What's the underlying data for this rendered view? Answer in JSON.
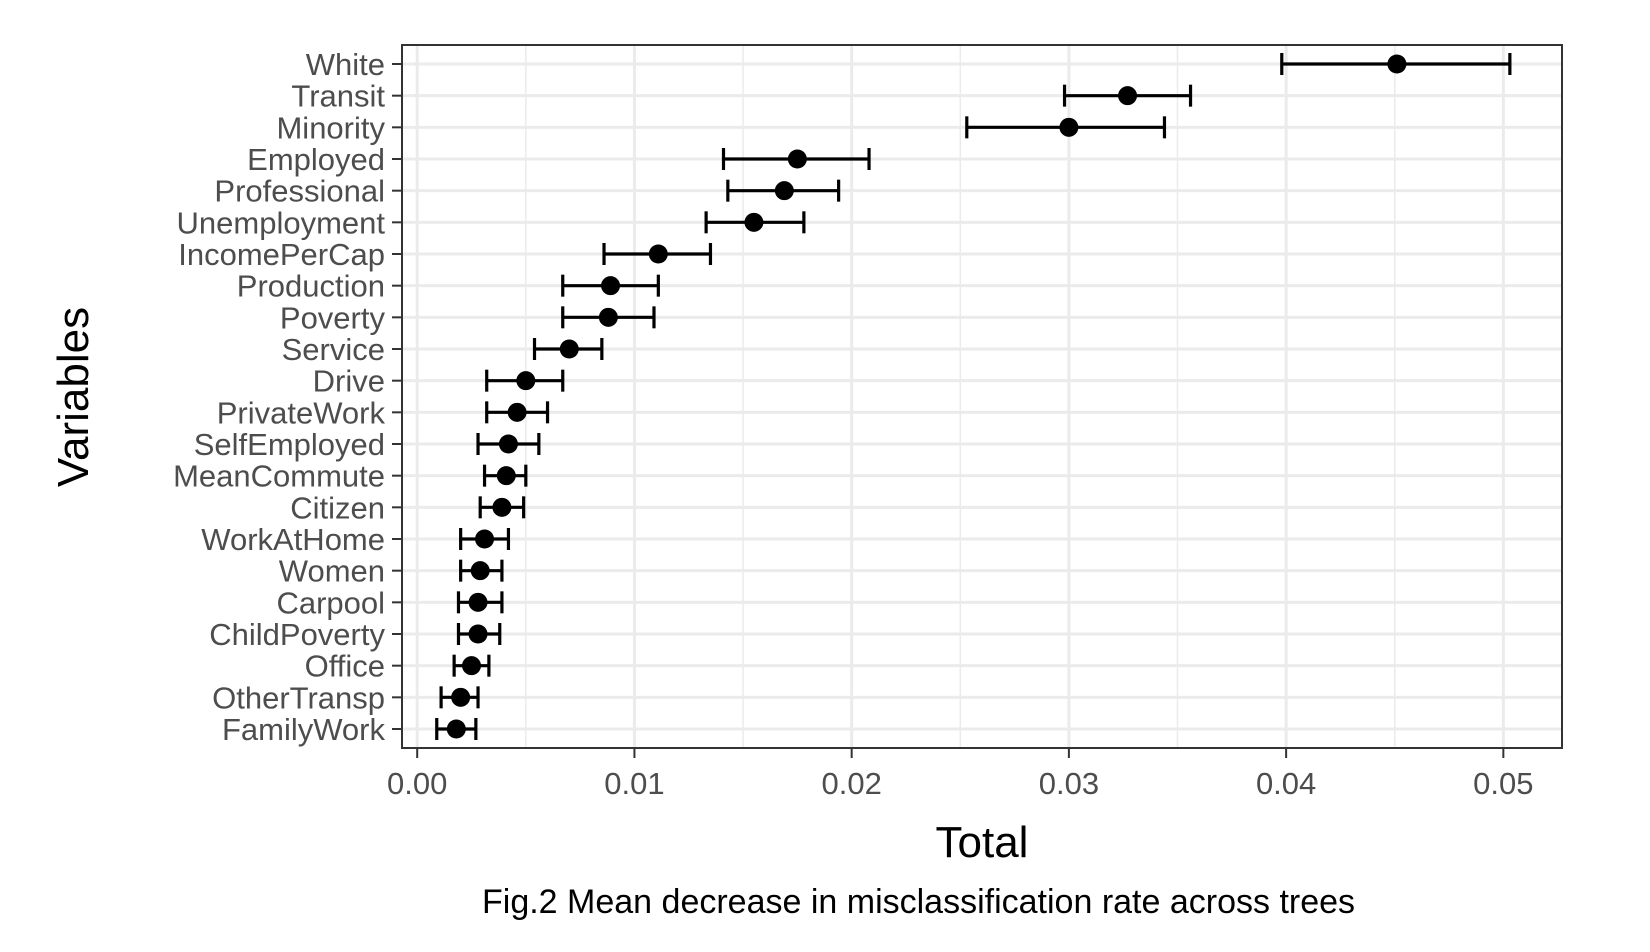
{
  "caption": "Fig.2 Mean decrease in misclassification rate across trees",
  "colors": {
    "panel_border": "#333333",
    "grid": "#ebebeb",
    "tick_text": "#4d4d4d",
    "marks": "#000000"
  },
  "chart_data": {
    "type": "scatter",
    "title": "",
    "xlabel": "Total",
    "ylabel": "Variables",
    "xlim": [
      -0.0007,
      0.0527
    ],
    "x_ticks": [
      "0.00",
      "0.01",
      "0.02",
      "0.03",
      "0.04",
      "0.05"
    ],
    "grid": true,
    "error_bars": true,
    "categories": [
      "White",
      "Transit",
      "Minority",
      "Employed",
      "Professional",
      "Unemployment",
      "IncomePerCap",
      "Production",
      "Poverty",
      "Service",
      "Drive",
      "PrivateWork",
      "SelfEmployed",
      "MeanCommute",
      "Citizen",
      "WorkAtHome",
      "Women",
      "Carpool",
      "ChildPoverty",
      "Office",
      "OtherTransp",
      "FamilyWork"
    ],
    "values": [
      0.0451,
      0.0327,
      0.03,
      0.0175,
      0.0169,
      0.0155,
      0.0111,
      0.0089,
      0.0088,
      0.007,
      0.005,
      0.0046,
      0.0042,
      0.0041,
      0.0039,
      0.0031,
      0.0029,
      0.0028,
      0.0028,
      0.0025,
      0.002,
      0.0018
    ],
    "lower": [
      0.0398,
      0.0298,
      0.0253,
      0.0141,
      0.0143,
      0.0133,
      0.0086,
      0.0067,
      0.0067,
      0.0054,
      0.0032,
      0.0032,
      0.0028,
      0.0031,
      0.0029,
      0.002,
      0.002,
      0.0019,
      0.0019,
      0.0017,
      0.0011,
      0.0009
    ],
    "upper": [
      0.0503,
      0.0356,
      0.0344,
      0.0208,
      0.0194,
      0.0178,
      0.0135,
      0.0111,
      0.0109,
      0.0085,
      0.0067,
      0.006,
      0.0056,
      0.005,
      0.0049,
      0.0042,
      0.0039,
      0.0039,
      0.0038,
      0.0033,
      0.0028,
      0.0027
    ]
  }
}
